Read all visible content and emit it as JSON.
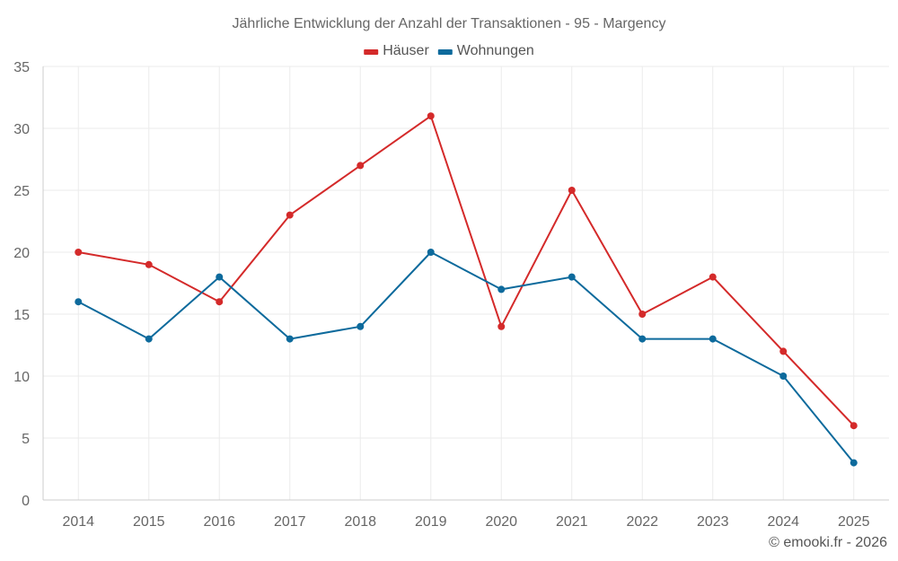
{
  "chart_data": {
    "type": "line",
    "title": "Jährliche Entwicklung der Anzahl der Transaktionen - 95 - Margency",
    "xlabel": "",
    "ylabel": "",
    "categories": [
      "2014",
      "2015",
      "2016",
      "2017",
      "2018",
      "2019",
      "2020",
      "2021",
      "2022",
      "2023",
      "2024",
      "2025"
    ],
    "ylim": [
      0,
      35
    ],
    "yticks": [
      0,
      5,
      10,
      15,
      20,
      25,
      30,
      35
    ],
    "grid": true,
    "legend_position": "top-center",
    "series": [
      {
        "name": "Häuser",
        "color": "#d42a2a",
        "values": [
          20,
          19,
          16,
          23,
          27,
          31,
          14,
          25,
          15,
          18,
          12,
          6
        ]
      },
      {
        "name": "Wohnungen",
        "color": "#0d6a9c",
        "values": [
          16,
          13,
          18,
          13,
          14,
          20,
          17,
          18,
          13,
          13,
          10,
          3
        ]
      }
    ]
  },
  "credit": "© emooki.fr - 2026"
}
